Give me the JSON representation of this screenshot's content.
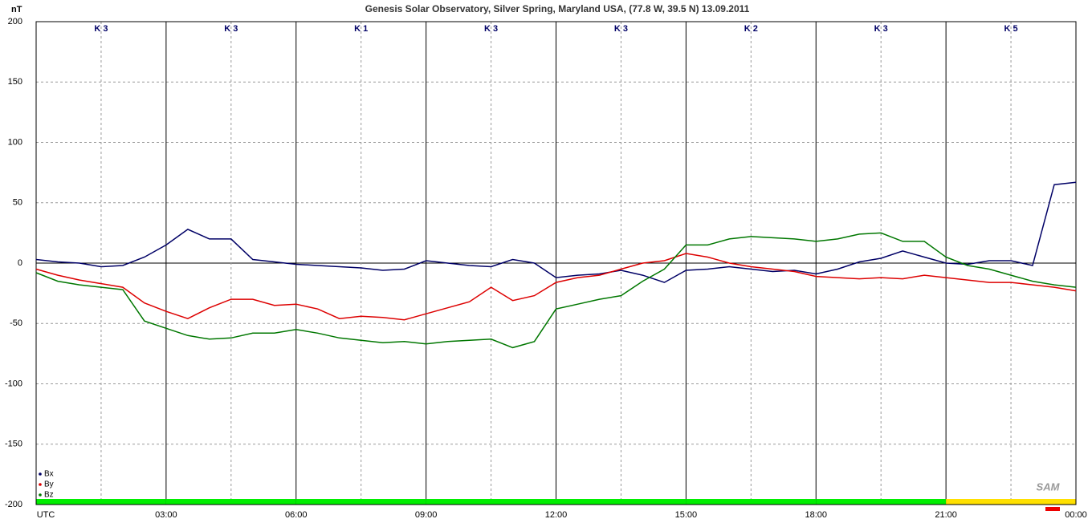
{
  "chart_data": {
    "type": "line",
    "title": "Genesis Solar Observatory, Silver Spring, Maryland USA, (77.8 W, 39.5 N)  13.09.2011",
    "y_label": "nT",
    "logo": "SAM",
    "xlim": [
      0,
      24
    ],
    "xticks": [
      {
        "value": 0,
        "label": "UTC"
      },
      {
        "value": 3,
        "label": "03:00"
      },
      {
        "value": 6,
        "label": "06:00"
      },
      {
        "value": 9,
        "label": "09:00"
      },
      {
        "value": 12,
        "label": "12:00"
      },
      {
        "value": 15,
        "label": "15:00"
      },
      {
        "value": 18,
        "label": "18:00"
      },
      {
        "value": 21,
        "label": "21:00"
      },
      {
        "value": 24,
        "label": "00:00"
      }
    ],
    "ylim": [
      -200,
      200
    ],
    "yticks": [
      -200,
      -150,
      -100,
      -50,
      0,
      50,
      100,
      150,
      200
    ],
    "grid": true,
    "k_index": {
      "labels": [
        "K 3",
        "K 3",
        "K 1",
        "K 3",
        "K 3",
        "K 2",
        "K 3",
        "K 5"
      ],
      "colors": [
        "#00ee00",
        "#00ee00",
        "#00ee00",
        "#00ee00",
        "#00ee00",
        "#00ee00",
        "#00ee00",
        "#ffe000"
      ]
    },
    "x": [
      0,
      0.5,
      1,
      1.5,
      2,
      2.5,
      3,
      3.5,
      4,
      4.5,
      5,
      5.5,
      6,
      6.5,
      7,
      7.5,
      8,
      8.5,
      9,
      9.5,
      10,
      10.5,
      11,
      11.5,
      12,
      12.5,
      13,
      13.5,
      14,
      14.5,
      15,
      15.5,
      16,
      16.5,
      17,
      17.5,
      18,
      18.5,
      19,
      19.5,
      20,
      20.5,
      21,
      21.5,
      22,
      22.5,
      23,
      23.5,
      24
    ],
    "series": [
      {
        "name": "Bx",
        "color": "#000066",
        "values": [
          3,
          1,
          0,
          -3,
          -2,
          5,
          15,
          28,
          20,
          20,
          3,
          1,
          -1,
          -2,
          -3,
          -4,
          -6,
          -5,
          2,
          0,
          -2,
          -3,
          3,
          0,
          -12,
          -10,
          -9,
          -6,
          -10,
          -16,
          -6,
          -5,
          -3,
          -5,
          -7,
          -6,
          -9,
          -5,
          1,
          4,
          10,
          5,
          0,
          -1,
          2,
          2,
          -2,
          65,
          67
        ]
      },
      {
        "name": "By",
        "color": "#dd0000",
        "values": [
          -5,
          -10,
          -14,
          -17,
          -20,
          -33,
          -40,
          -46,
          -37,
          -30,
          -30,
          -35,
          -34,
          -38,
          -46,
          -44,
          -45,
          -47,
          -42,
          -37,
          -32,
          -20,
          -31,
          -27,
          -16,
          -12,
          -10,
          -5,
          0,
          2,
          8,
          5,
          0,
          -3,
          -5,
          -7,
          -11,
          -12,
          -13,
          -12,
          -13,
          -10,
          -12,
          -14,
          -16,
          -16,
          -18,
          -20,
          -23
        ]
      },
      {
        "name": "Bz",
        "color": "#007700",
        "values": [
          -8,
          -15,
          -18,
          -20,
          -22,
          -48,
          -54,
          -60,
          -63,
          -62,
          -58,
          -58,
          -55,
          -58,
          -62,
          -64,
          -66,
          -65,
          -67,
          -65,
          -64,
          -63,
          -70,
          -65,
          -38,
          -34,
          -30,
          -27,
          -15,
          -5,
          15,
          15,
          20,
          22,
          21,
          20,
          18,
          20,
          24,
          25,
          18,
          18,
          5,
          -2,
          -5,
          -10,
          -15,
          -18,
          -20
        ]
      }
    ]
  }
}
